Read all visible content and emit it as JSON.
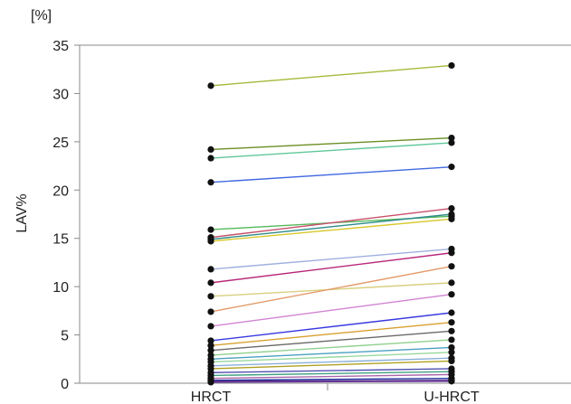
{
  "chart_data": {
    "type": "line",
    "title": "",
    "xlabel": "",
    "ylabel": "LAV%",
    "unit_label": "[%]",
    "categories": [
      "HRCT",
      "U-HRCT"
    ],
    "ylim": [
      0,
      35
    ],
    "yticks": [
      0,
      5,
      10,
      15,
      20,
      25,
      30,
      35
    ],
    "grid": false,
    "legend": "none",
    "marker_color": "#111111",
    "series": [
      {
        "values": [
          30.8,
          32.9
        ],
        "color": "#a8b83a"
      },
      {
        "values": [
          24.2,
          25.4
        ],
        "color": "#6b8e23"
      },
      {
        "values": [
          23.3,
          24.9
        ],
        "color": "#5fc79b"
      },
      {
        "values": [
          20.8,
          22.4
        ],
        "color": "#4169e1"
      },
      {
        "values": [
          15.9,
          17.3
        ],
        "color": "#55b85a"
      },
      {
        "values": [
          15.1,
          18.1
        ],
        "color": "#c8506b"
      },
      {
        "values": [
          14.9,
          17.5
        ],
        "color": "#2e8b8b"
      },
      {
        "values": [
          14.7,
          17.0
        ],
        "color": "#d8c82a"
      },
      {
        "values": [
          11.8,
          13.9
        ],
        "color": "#9fb0e0"
      },
      {
        "values": [
          10.4,
          13.5
        ],
        "color": "#b8287a"
      },
      {
        "values": [
          9.0,
          10.4
        ],
        "color": "#d8d080"
      },
      {
        "values": [
          7.4,
          12.1
        ],
        "color": "#e39a6a"
      },
      {
        "values": [
          5.9,
          9.2
        ],
        "color": "#d283d2"
      },
      {
        "values": [
          4.4,
          7.3
        ],
        "color": "#3a3ae0"
      },
      {
        "values": [
          3.9,
          6.3
        ],
        "color": "#d8a030"
      },
      {
        "values": [
          3.4,
          5.4
        ],
        "color": "#6a6a6a"
      },
      {
        "values": [
          2.9,
          4.5
        ],
        "color": "#8fd08f"
      },
      {
        "values": [
          2.5,
          3.7
        ],
        "color": "#4aa0c0"
      },
      {
        "values": [
          2.2,
          3.2
        ],
        "color": "#98d8a0"
      },
      {
        "values": [
          1.8,
          2.6
        ],
        "color": "#8ab0d8"
      },
      {
        "values": [
          1.5,
          2.3
        ],
        "color": "#b0a020"
      },
      {
        "values": [
          1.1,
          1.5
        ],
        "color": "#5050b0"
      },
      {
        "values": [
          0.8,
          1.2
        ],
        "color": "#40a080"
      },
      {
        "values": [
          0.5,
          0.9
        ],
        "color": "#aa66aa"
      },
      {
        "values": [
          0.3,
          0.5
        ],
        "color": "#2030a0"
      },
      {
        "values": [
          0.2,
          0.3
        ],
        "color": "#5a2a80"
      },
      {
        "values": [
          0.1,
          0.2
        ],
        "color": "#6a3aa0"
      }
    ]
  }
}
